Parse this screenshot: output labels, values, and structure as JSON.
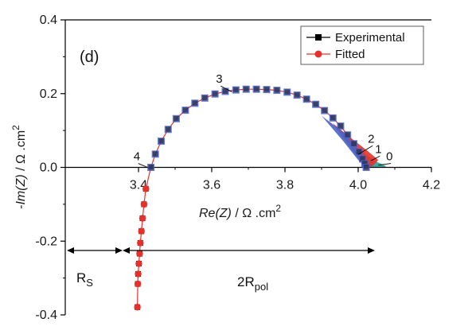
{
  "chart_data": {
    "type": "scatter",
    "panel_label": "(d)",
    "xlabel": {
      "italic": "Re(Z)",
      "rest": " / Ω .cm",
      "sup": "2"
    },
    "ylabel": {
      "prefix": "-",
      "italic": "Im(Z)",
      "rest": " / Ω .cm",
      "sup": "2"
    },
    "xlim": [
      3.2,
      4.2
    ],
    "ylim": [
      -0.4,
      0.4
    ],
    "x_ticks": [
      3.4,
      3.6,
      3.8,
      4.0,
      4.2
    ],
    "x_tick_labels": [
      "3.4",
      "3.6",
      "3.8",
      "4.0",
      "4.2"
    ],
    "y_ticks": [
      -0.4,
      -0.2,
      0.0,
      0.2,
      0.4
    ],
    "y_tick_labels": [
      "-0.4",
      "-0.2",
      "0.0",
      "0.2",
      "0.4"
    ],
    "grid": false,
    "legend": {
      "placement": "top-right",
      "entries": [
        {
          "label": "Experimental",
          "marker": "square",
          "color": "#000000"
        },
        {
          "label": "Fitted",
          "marker": "circle",
          "color": "#e8302a"
        }
      ]
    },
    "series": [
      {
        "name": "Experimental",
        "color": "#000000",
        "marker": "square",
        "x": [
          3.397,
          3.398,
          3.399,
          3.401,
          3.403,
          3.405,
          3.408,
          3.411,
          3.415,
          3.42,
          3.434,
          3.446,
          3.462,
          3.481,
          3.503,
          3.528,
          3.554,
          3.581,
          3.609,
          3.637,
          3.666,
          3.694,
          3.722,
          3.75,
          3.778,
          3.806,
          3.833,
          3.859,
          3.884,
          3.908,
          3.931,
          3.952,
          3.971,
          3.988,
          4.002,
          4.012,
          4.018,
          4.022
        ],
        "y": [
          -0.379,
          -0.316,
          -0.289,
          -0.261,
          -0.234,
          -0.205,
          -0.173,
          -0.138,
          -0.1,
          -0.058,
          0.0,
          0.036,
          0.071,
          0.103,
          0.132,
          0.155,
          0.174,
          0.188,
          0.199,
          0.206,
          0.21,
          0.212,
          0.212,
          0.211,
          0.209,
          0.204,
          0.196,
          0.185,
          0.171,
          0.154,
          0.134,
          0.112,
          0.088,
          0.064,
          0.042,
          0.023,
          0.01,
          0.0
        ]
      },
      {
        "name": "Fitted",
        "color": "#e8302a",
        "marker": "circle",
        "x": [
          3.397,
          3.398,
          3.399,
          3.401,
          3.403,
          3.405,
          3.408,
          3.411,
          3.415,
          3.42
        ],
        "y": [
          -0.379,
          -0.316,
          -0.289,
          -0.261,
          -0.234,
          -0.205,
          -0.173,
          -0.138,
          -0.1,
          -0.058
        ]
      }
    ],
    "annotations": [
      {
        "text": "0",
        "x": 4.085,
        "y": 0.015
      },
      {
        "text": "1",
        "x": 4.055,
        "y": 0.035
      },
      {
        "text": "2",
        "x": 4.035,
        "y": 0.063
      },
      {
        "text": "3",
        "x": 3.62,
        "y": 0.225
      },
      {
        "text": "4",
        "x": 3.395,
        "y": 0.015
      }
    ],
    "dimension_labels": [
      {
        "main": "R",
        "sub": "S"
      },
      {
        "main": "2R",
        "sub": "pol"
      }
    ]
  }
}
